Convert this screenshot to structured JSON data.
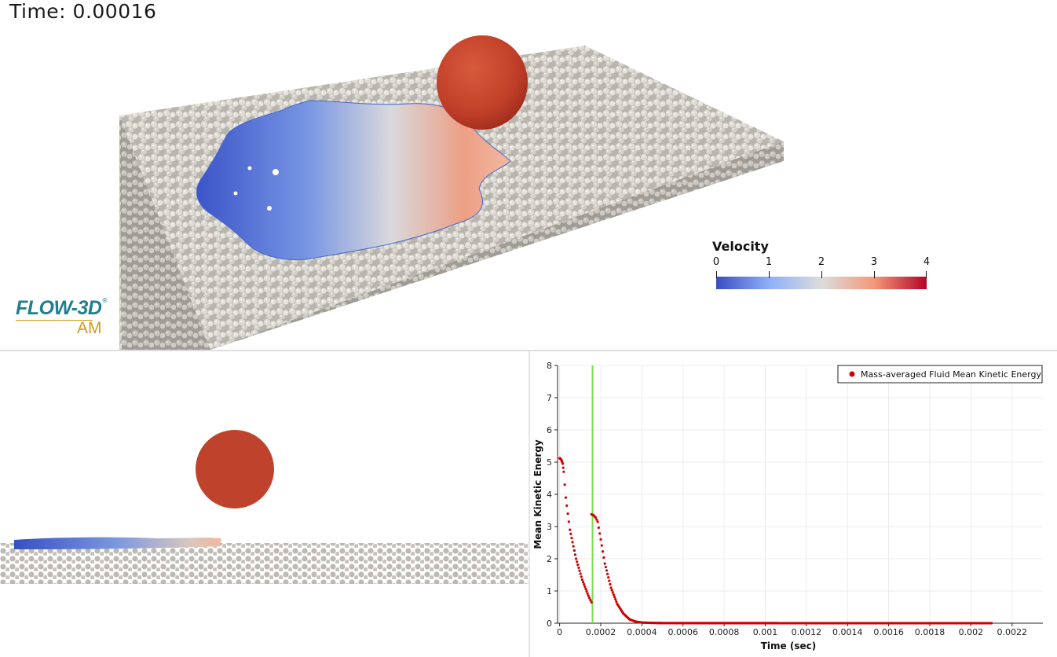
{
  "time_display": "Time: 0.00016",
  "logo": {
    "brand": "FLOW-3D",
    "trademark": "®",
    "product": "AM"
  },
  "velocity_legend": {
    "title": "Velocity",
    "ticks": [
      "0",
      "1",
      "2",
      "3",
      "4"
    ],
    "colors": [
      "#3b4cc0",
      "#8caff9",
      "#dcdcdc",
      "#f4987a",
      "#b40426"
    ]
  },
  "colors": {
    "powder": "#c9c5bf",
    "sphere": "#c0432b",
    "cursor_line": "#7ed957",
    "series": "#d10000"
  },
  "chart_data": {
    "type": "scatter",
    "title": "",
    "xlabel": "Time (sec)",
    "ylabel": "Mean Kinetic Energy",
    "xlim": [
      -1e-05,
      0.00235
    ],
    "ylim": [
      0,
      8
    ],
    "xticks": [
      "0",
      "0.0002",
      "0.0004",
      "0.0006",
      "0.0008",
      "0.001",
      "0.0012",
      "0.0014",
      "0.0016",
      "0.0018",
      "0.002",
      "0.0022"
    ],
    "yticks": [
      "0",
      "1",
      "2",
      "3",
      "4",
      "5",
      "6",
      "7",
      "8"
    ],
    "grid": true,
    "legend_position": "top-right",
    "current_time_marker": 0.00016,
    "series": [
      {
        "name": "Mass-averaged Fluid Mean Kinetic Energy",
        "segments": [
          {
            "x": [
              0,
              5e-06,
              1e-05,
              1.5e-05,
              2e-05,
              3e-05,
              5e-05,
              8e-05,
              0.00011,
              0.00014,
              0.000155
            ],
            "y": [
              5.12,
              5.1,
              5.05,
              4.95,
              4.7,
              3.9,
              2.9,
              2.0,
              1.35,
              0.85,
              0.65
            ]
          },
          {
            "x": [
              0.000155,
              0.000165,
              0.000175,
              0.000185,
              0.0002,
              0.00022,
              0.00025,
              0.00028,
              0.00031,
              0.00034,
              0.00037,
              0.0004,
              0.00045,
              0.0005
            ],
            "y": [
              3.38,
              3.35,
              3.28,
              3.15,
              2.6,
              1.85,
              1.1,
              0.6,
              0.3,
              0.12,
              0.05,
              0.02,
              0.01,
              0.005
            ]
          },
          {
            "x": [
              0.0005,
              0.0008,
              0.0011,
              0.0014,
              0.0017,
              0.002,
              0.0021
            ],
            "y": [
              0.005,
              0.003,
              0.002,
              0.001,
              0.001,
              0.001,
              0.001
            ]
          }
        ]
      }
    ]
  }
}
